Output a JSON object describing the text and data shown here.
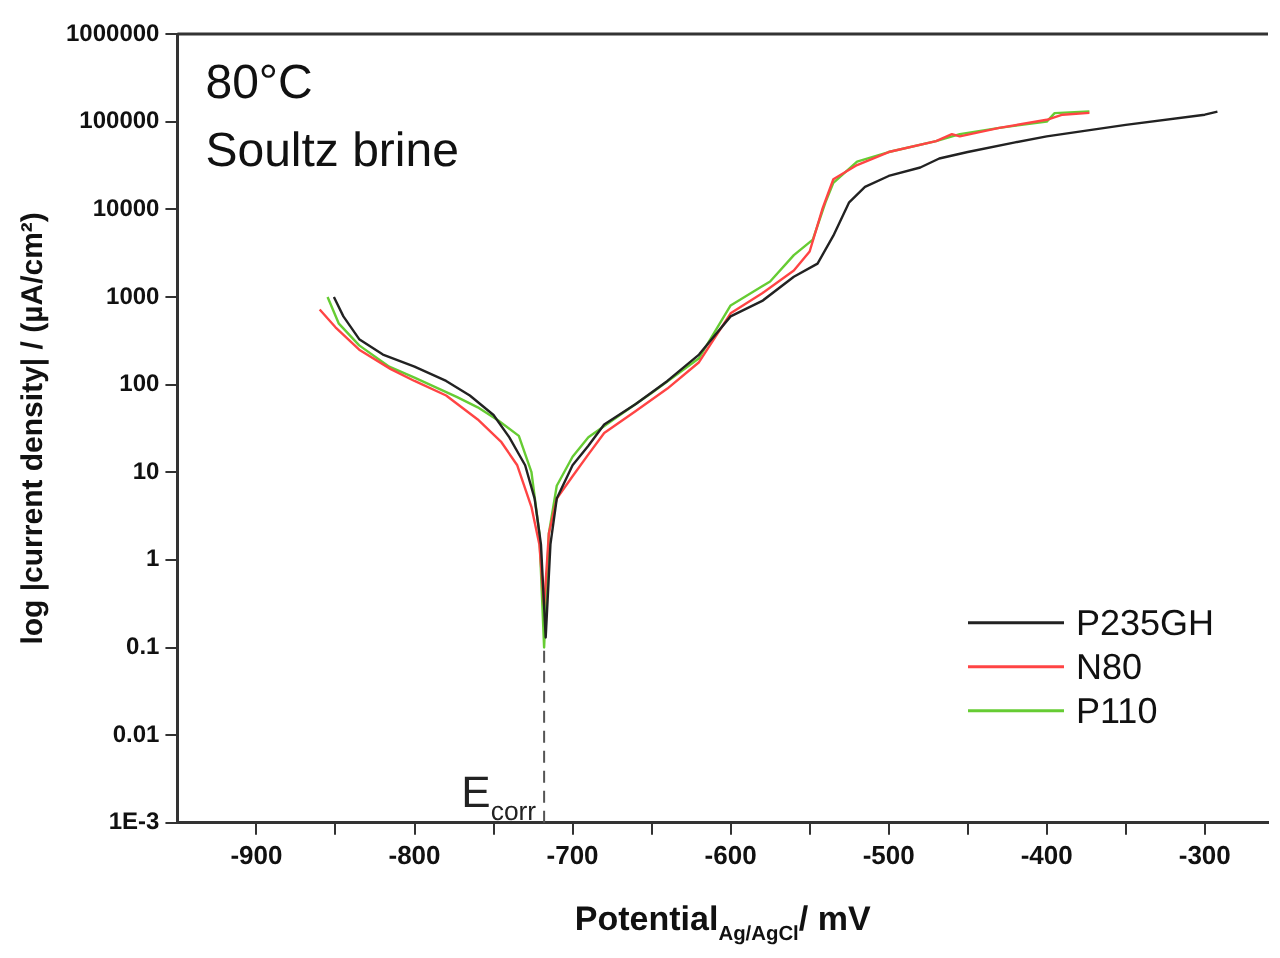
{
  "chart_data": {
    "type": "line",
    "xlabel": "Potential$_{Ag/AgCl}$/ mV",
    "ylabel": "log |current density| / (µA/cm²)",
    "annotations": [
      "80°C",
      "Soultz brine"
    ],
    "log": "y",
    "xlim": [
      -950,
      -260
    ],
    "xticks": [
      -900,
      {
        "value": -850,
        "label": null
      },
      -800,
      {
        "value": -750,
        "label": null
      },
      -700,
      {
        "value": -650,
        "label": null
      },
      -600,
      {
        "value": -550,
        "label": null
      },
      -500,
      {
        "value": -450,
        "label": null
      },
      -400,
      {
        "value": -350,
        "label": null
      },
      -300
    ],
    "ylim": [
      0.001,
      1000000
    ],
    "yticks": [
      {
        "value": 0.001,
        "label": "1E-3"
      },
      0.01,
      0.1,
      1,
      10,
      100,
      1000,
      10000,
      100000,
      1000000
    ],
    "grid": false,
    "legend": "bottom right",
    "marker": "none",
    "line_style": "solid",
    "ref_lines": [
      {
        "axis": "x",
        "value": -718,
        "label": "E$_{corr}$",
        "line_style": "dashed",
        "color": "#555555"
      }
    ],
    "series": [
      {
        "name": "P235GH",
        "color": "#222222",
        "x": [
          -851,
          -845,
          -835,
          -820,
          -800,
          -780,
          -765,
          -750,
          -740,
          -730,
          -724,
          -720,
          -717,
          -714,
          -710,
          -700,
          -690,
          -680,
          -660,
          -640,
          -620,
          -600,
          -580,
          -560,
          -545,
          -535,
          -525,
          -515,
          -500,
          -480,
          -468,
          -450,
          -420,
          -400,
          -350,
          -300,
          -292
        ],
        "values": [
          1000,
          600,
          330,
          220,
          160,
          110,
          75,
          45,
          25,
          12,
          5,
          1.5,
          0.13,
          1.5,
          5,
          12,
          20,
          35,
          60,
          110,
          220,
          600,
          900,
          1700,
          2400,
          5000,
          12000,
          18000,
          24000,
          30000,
          38000,
          45000,
          58000,
          68000,
          92000,
          120000,
          130000
        ]
      },
      {
        "name": "N80",
        "color": "#ff4444",
        "x": [
          -860,
          -850,
          -835,
          -815,
          -800,
          -780,
          -760,
          -745,
          -735,
          -726,
          -721,
          -718,
          -715,
          -710,
          -700,
          -690,
          -680,
          -660,
          -640,
          -620,
          -600,
          -580,
          -560,
          -550,
          -542,
          -535,
          -520,
          -500,
          -470,
          -460,
          -455,
          -430,
          -400,
          -390,
          -373
        ],
        "values": [
          720,
          450,
          250,
          150,
          110,
          75,
          40,
          22,
          12,
          4,
          1.5,
          0.3,
          2,
          5,
          9,
          16,
          28,
          50,
          90,
          180,
          650,
          1100,
          2000,
          3300,
          10000,
          22000,
          32000,
          45000,
          60000,
          72000,
          68000,
          85000,
          105000,
          120000,
          126000
        ]
      },
      {
        "name": "P110",
        "color": "#66cc33",
        "x": [
          -855,
          -848,
          -835,
          -816,
          -800,
          -773,
          -760,
          -747,
          -734,
          -726,
          -721,
          -718,
          -715,
          -710,
          -700,
          -690,
          -670,
          -650,
          -620,
          -600,
          -575,
          -560,
          -548,
          -540,
          -535,
          -520,
          -500,
          -470,
          -455,
          -430,
          -400,
          -395,
          -373
        ],
        "values": [
          1000,
          500,
          280,
          160,
          120,
          72,
          55,
          39,
          26,
          10,
          2,
          0.1,
          2,
          7,
          15,
          25,
          45,
          80,
          200,
          800,
          1500,
          3000,
          4500,
          12000,
          20000,
          35000,
          45000,
          60000,
          72000,
          85000,
          100000,
          125000,
          131000
        ]
      }
    ]
  }
}
